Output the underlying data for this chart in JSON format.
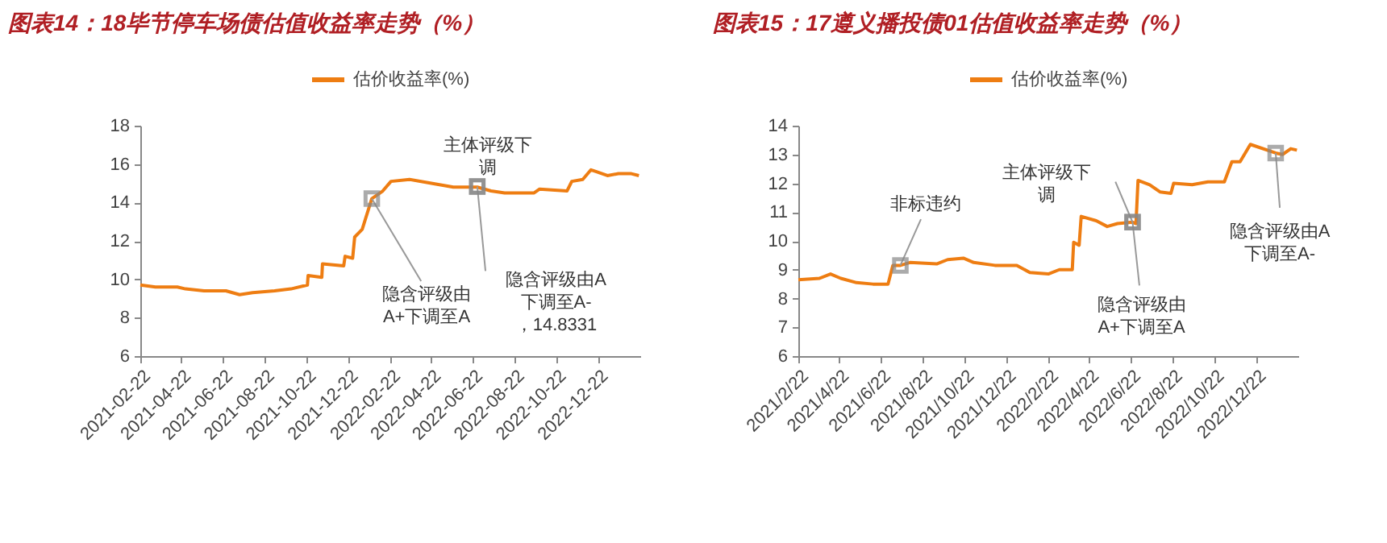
{
  "chart_data": [
    {
      "type": "line",
      "title": "图表14：18毕节停车场债估值收益率走势（%）",
      "x": [
        "2021-02-22",
        "2021-03-16",
        "2021-04-17",
        "2021-04-29",
        "2021-05-26",
        "2021-06-27",
        "2021-07-17",
        "2021-08-05",
        "2021-09-06",
        "2021-09-30",
        "2021-10-24",
        "2021-10-25",
        "2021-11-14",
        "2021-11-15",
        "2021-12-16",
        "2021-12-18",
        "2021-12-29",
        "2022-01-01",
        "2022-01-12",
        "2022-01-26",
        "2022-02-11",
        "2022-02-23",
        "2022-03-22",
        "2022-04-23",
        "2022-05-25",
        "2022-06-29",
        "2022-07-19",
        "2022-08-08",
        "2022-09-20",
        "2022-09-28",
        "2022-11-07",
        "2022-11-14",
        "2022-11-30",
        "2022-12-12",
        "2022-12-20",
        "2023-01-05",
        "2023-01-21",
        "2023-02-09",
        "2023-02-20"
      ],
      "series": [
        {
          "name": "估价收益率(%)",
          "color": "#ee7d12",
          "values": [
            9.7,
            9.6,
            9.6,
            9.5,
            9.4,
            9.4,
            9.2,
            9.3,
            9.4,
            9.5,
            9.7,
            10.2,
            10.1,
            10.8,
            10.7,
            11.2,
            11.1,
            12.2,
            12.6,
            14.2,
            14.6,
            15.1,
            15.2,
            15.0,
            14.8,
            14.8,
            14.6,
            14.5,
            14.5,
            14.7,
            14.6,
            15.1,
            15.2,
            15.7,
            15.6,
            15.4,
            15.5,
            15.5,
            15.4
          ]
        }
      ],
      "xlim": [
        "2021-02-22",
        "2023-02-22"
      ],
      "xticks": [
        "2021-02-22",
        "2021-04-22",
        "2021-06-22",
        "2021-08-22",
        "2021-10-22",
        "2021-12-22",
        "2022-02-22",
        "2022-04-22",
        "2022-06-22",
        "2022-08-22",
        "2022-10-22",
        "2022-12-22"
      ],
      "ylim": [
        6,
        18
      ],
      "yticks": [
        6,
        8,
        10,
        12,
        14,
        16,
        18
      ],
      "grid": false,
      "legend": "top",
      "annotations": [
        {
          "text": "隐含评级由A+下调至A",
          "x": "2022-01-26",
          "y": 14.2
        },
        {
          "text": "主体评级下调",
          "x": "2022-06-29",
          "y": 14.8331
        },
        {
          "text": "隐含评级由A下调至A-，14.8331",
          "x": "2022-06-29",
          "y": 14.8331
        }
      ]
    },
    {
      "type": "line",
      "title": "图表15：17遵义播投债01估值收益率走势（%）",
      "x": [
        "2021-02-22",
        "2021-03-25",
        "2021-04-10",
        "2021-04-25",
        "2021-05-18",
        "2021-06-11",
        "2021-07-03",
        "2021-07-10",
        "2021-07-21",
        "2021-08-04",
        "2021-09-12",
        "2021-09-28",
        "2021-10-21",
        "2021-11-05",
        "2021-12-06",
        "2022-01-07",
        "2022-01-26",
        "2022-02-22",
        "2022-03-10",
        "2022-03-29",
        "2022-03-31",
        "2022-04-08",
        "2022-04-11",
        "2022-05-03",
        "2022-05-19",
        "2022-06-03",
        "2022-06-25",
        "2022-06-30",
        "2022-07-03",
        "2022-07-20",
        "2022-08-04",
        "2022-08-20",
        "2022-08-24",
        "2022-09-20",
        "2022-10-13",
        "2022-11-06",
        "2022-11-17",
        "2022-11-29",
        "2022-12-14",
        "2023-01-20",
        "2023-01-30",
        "2023-02-11",
        "2023-02-20"
      ],
      "series": [
        {
          "name": "估价收益率(%)",
          "color": "#ee7d12",
          "values": [
            8.65,
            8.7,
            8.85,
            8.7,
            8.55,
            8.5,
            8.5,
            9.15,
            9.15,
            9.25,
            9.2,
            9.35,
            9.4,
            9.25,
            9.15,
            9.15,
            8.9,
            8.85,
            9.0,
            9.0,
            9.95,
            9.85,
            10.85,
            10.7,
            10.5,
            10.6,
            10.65,
            10.6,
            12.1,
            11.95,
            11.7,
            11.65,
            12.0,
            11.95,
            12.05,
            12.05,
            12.75,
            12.75,
            13.35,
            13.05,
            13.0,
            13.2,
            13.15
          ]
        }
      ],
      "xlim": [
        "2021-02-22",
        "2023-02-22"
      ],
      "xticks": [
        {
          "value": "2021-02-22",
          "label": "2021/2/22"
        },
        {
          "value": "2021-04-22",
          "label": "2021/4/22"
        },
        {
          "value": "2021-06-22",
          "label": "2021/6/22"
        },
        {
          "value": "2021-08-22",
          "label": "2021/8/22"
        },
        {
          "value": "2021-10-22",
          "label": "2021/10/22"
        },
        {
          "value": "2021-12-22",
          "label": "2021/12/22"
        },
        {
          "value": "2022-02-22",
          "label": "2022/2/22"
        },
        {
          "value": "2022-04-22",
          "label": "2022/4/22"
        },
        {
          "value": "2022-06-22",
          "label": "2022/6/22"
        },
        {
          "value": "2022-08-22",
          "label": "2022/8/22"
        },
        {
          "value": "2022-10-22",
          "label": "2022/10/22"
        },
        {
          "value": "2022-12-22",
          "label": "2022/12/22"
        }
      ],
      "ylim": [
        6,
        14
      ],
      "yticks": [
        6,
        7,
        8,
        9,
        10,
        11,
        12,
        13,
        14
      ],
      "grid": false,
      "legend": "top",
      "annotations": [
        {
          "text": "非标违约",
          "x": "2021-07-21",
          "y": 9.15
        },
        {
          "text": "主体评级下调",
          "x": "2022-06-25",
          "y": 10.65
        },
        {
          "text": "隐含评级由A+下调至A",
          "x": "2022-06-25",
          "y": 10.65
        },
        {
          "text": "隐含评级由A下调至A-",
          "x": "2023-01-20",
          "y": 13.05
        }
      ]
    }
  ]
}
